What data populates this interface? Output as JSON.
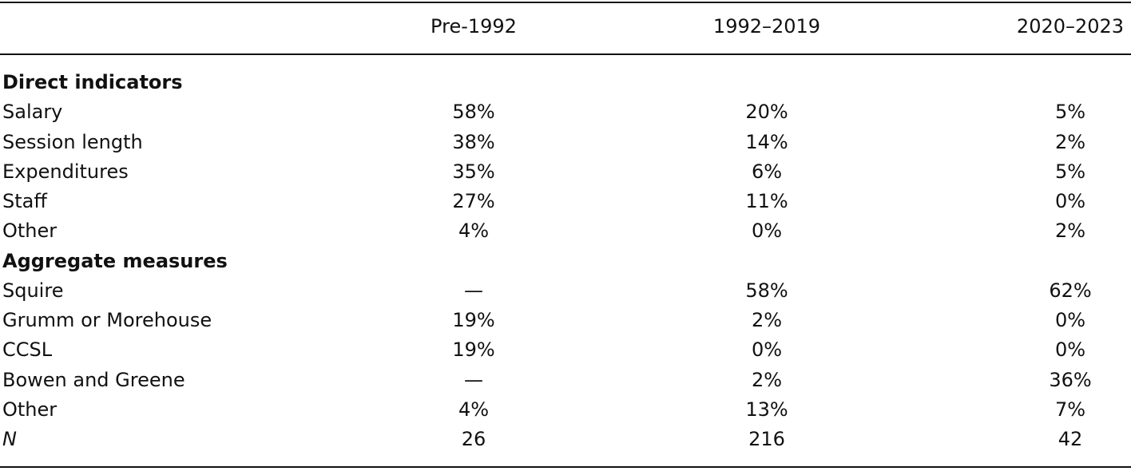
{
  "table": {
    "columns": [
      "Pre-1992",
      "1992–2019",
      "2020–2023"
    ],
    "sections": [
      {
        "title": "Direct indicators",
        "rows": [
          {
            "label": "Salary",
            "cells": [
              "58%",
              "20%",
              "5%"
            ]
          },
          {
            "label": "Session length",
            "cells": [
              "38%",
              "14%",
              "2%"
            ]
          },
          {
            "label": "Expenditures",
            "cells": [
              "35%",
              "6%",
              "5%"
            ]
          },
          {
            "label": "Staff",
            "cells": [
              "27%",
              "11%",
              "0%"
            ]
          },
          {
            "label": "Other",
            "cells": [
              "4%",
              "0%",
              "2%"
            ]
          }
        ]
      },
      {
        "title": "Aggregate measures",
        "rows": [
          {
            "label": "Squire",
            "cells": [
              "—",
              "58%",
              "62%"
            ]
          },
          {
            "label": "Grumm or Morehouse",
            "cells": [
              "19%",
              "2%",
              "0%"
            ]
          },
          {
            "label": "CCSL",
            "cells": [
              "19%",
              "0%",
              "0%"
            ]
          },
          {
            "label": "Bowen and Greene",
            "cells": [
              "—",
              "2%",
              "36%"
            ]
          },
          {
            "label": "Other",
            "cells": [
              "4%",
              "13%",
              "7%"
            ]
          }
        ]
      }
    ],
    "total_row": {
      "label": "N",
      "cells": [
        "26",
        "216",
        "42"
      ]
    }
  }
}
